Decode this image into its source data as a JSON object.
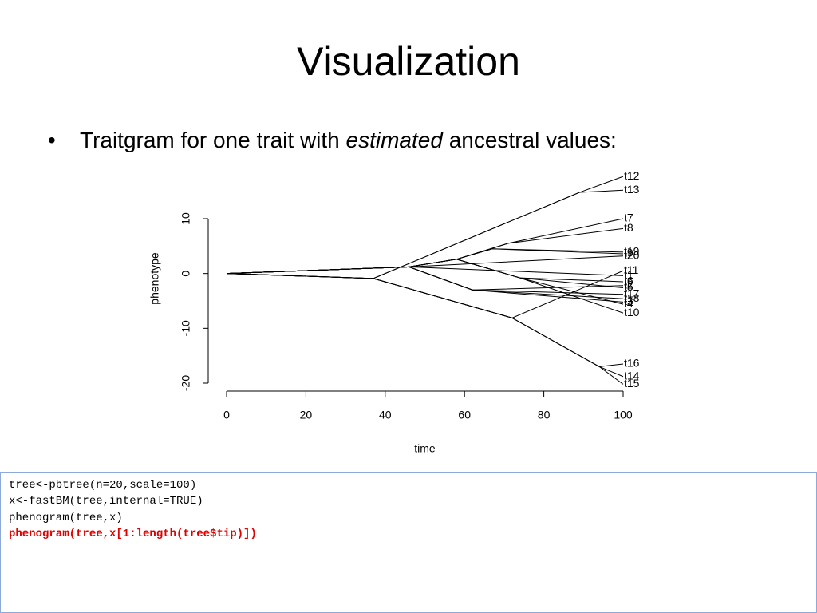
{
  "slide": {
    "title": "Visualization",
    "bullet": [
      "Traitgram for one trait with ",
      "estimated",
      " ancestral values:"
    ],
    "code": [
      "tree<-pbtree(n=20,scale=100)",
      "x<-fastBM(tree,internal=TRUE)",
      "phenogram(tree,x)",
      "phenogram(tree,x[1:length(tree$tip)])"
    ]
  },
  "chart_data": {
    "type": "phenogram",
    "x_label": "time",
    "y_label": "phenotype",
    "color": "#000000",
    "xlim": [
      0,
      100
    ],
    "xticks": [
      0,
      20,
      40,
      60,
      80,
      100
    ],
    "ylim": [
      -20,
      10
    ],
    "yticks": [
      -20,
      -10,
      0,
      10
    ],
    "series": [
      {
        "name": "t12",
        "x": [
          0,
          37,
          89,
          100
        ],
        "y": [
          0,
          -0.9,
          14.8,
          17.7
        ]
      },
      {
        "name": "t13",
        "x": [
          0,
          37,
          89,
          100
        ],
        "y": [
          0,
          -0.9,
          14.8,
          15.2
        ]
      },
      {
        "name": "t7",
        "x": [
          0,
          46,
          58,
          71,
          100
        ],
        "y": [
          0,
          1.2,
          2.6,
          5.5,
          10
        ]
      },
      {
        "name": "t8",
        "x": [
          0,
          46,
          58,
          71,
          100
        ],
        "y": [
          0,
          1.2,
          2.6,
          5.5,
          8.2
        ]
      },
      {
        "name": "t19",
        "x": [
          0,
          46,
          58,
          67,
          100
        ],
        "y": [
          0,
          1.2,
          2.6,
          4.5,
          3.9
        ]
      },
      {
        "name": "t9",
        "x": [
          0,
          46,
          58,
          67,
          100
        ],
        "y": [
          0,
          1.2,
          2.6,
          4.5,
          3.6
        ]
      },
      {
        "name": "t20",
        "x": [
          0,
          46,
          100
        ],
        "y": [
          0,
          1.2,
          3.2
        ]
      },
      {
        "name": "t11",
        "x": [
          0,
          37,
          72,
          100
        ],
        "y": [
          0,
          -0.9,
          -8.1,
          0.5
        ]
      },
      {
        "name": "t1",
        "x": [
          0,
          46,
          100
        ],
        "y": [
          0,
          1.2,
          -0.4
        ]
      },
      {
        "name": "t6",
        "x": [
          0,
          46,
          58,
          74,
          100
        ],
        "y": [
          0,
          1.2,
          2.6,
          -0.8,
          -1.5
        ]
      },
      {
        "name": "t5",
        "x": [
          0,
          46,
          58,
          74,
          100
        ],
        "y": [
          0,
          1.2,
          2.6,
          -0.8,
          -2.6
        ]
      },
      {
        "name": "t2",
        "x": [
          0,
          46,
          62,
          100
        ],
        "y": [
          0,
          1.2,
          -3,
          -2.2
        ]
      },
      {
        "name": "t17",
        "x": [
          0,
          46,
          62,
          100
        ],
        "y": [
          0,
          1.2,
          -3,
          -3.8
        ]
      },
      {
        "name": "t18",
        "x": [
          0,
          46,
          62,
          100
        ],
        "y": [
          0,
          1.2,
          -3,
          -4.6
        ]
      },
      {
        "name": "t3",
        "x": [
          0,
          46,
          62,
          100
        ],
        "y": [
          0,
          1.2,
          -3,
          -5.2
        ]
      },
      {
        "name": "t4",
        "x": [
          0,
          46,
          58,
          74,
          100
        ],
        "y": [
          0,
          1.2,
          2.6,
          -0.8,
          -5.6
        ]
      },
      {
        "name": "t10",
        "x": [
          0,
          46,
          58,
          74,
          100
        ],
        "y": [
          0,
          1.2,
          2.6,
          -0.8,
          -7.2
        ]
      },
      {
        "name": "t16",
        "x": [
          0,
          37,
          72,
          94,
          100
        ],
        "y": [
          0,
          -0.9,
          -8.1,
          -17,
          -16.5
        ]
      },
      {
        "name": "t14",
        "x": [
          0,
          37,
          72,
          94,
          100
        ],
        "y": [
          0,
          -0.9,
          -8.1,
          -17,
          -18.8
        ]
      },
      {
        "name": "t15",
        "x": [
          0,
          37,
          72,
          94,
          100
        ],
        "y": [
          0,
          -0.9,
          -8.1,
          -17,
          -20.2
        ]
      }
    ]
  }
}
